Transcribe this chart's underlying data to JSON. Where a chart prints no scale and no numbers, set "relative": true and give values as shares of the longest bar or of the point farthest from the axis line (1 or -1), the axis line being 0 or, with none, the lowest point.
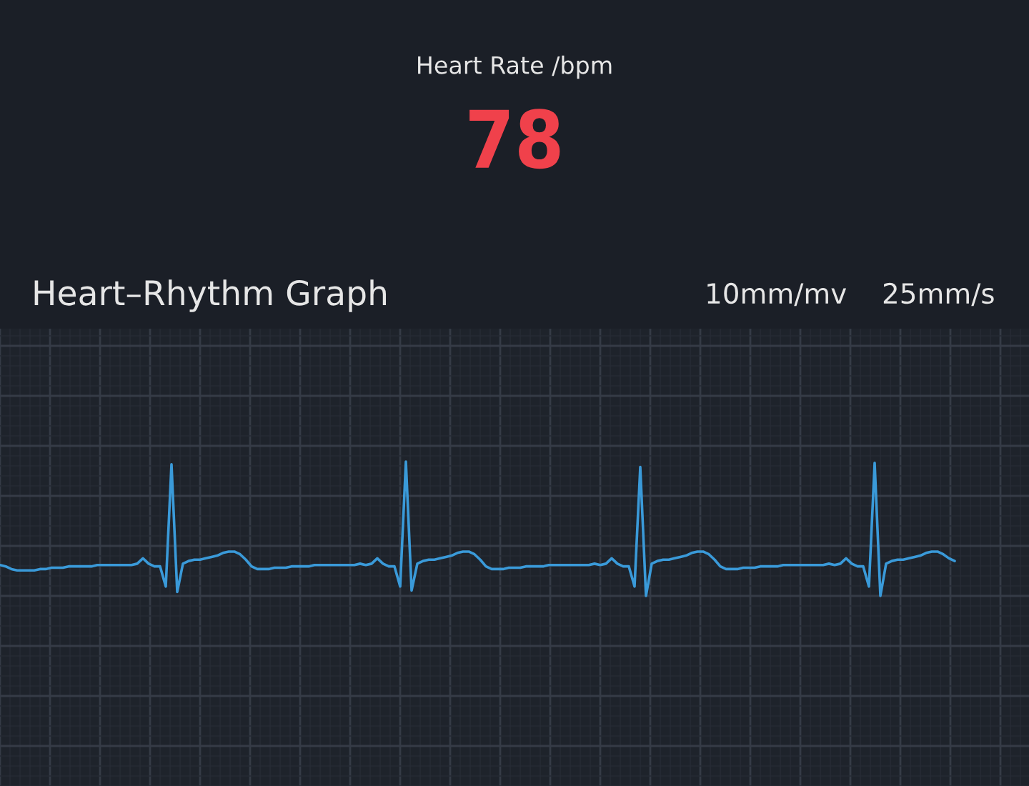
{
  "chart_data": [
    {
      "type": "other",
      "title": "Heart Rate /bpm",
      "annotations": [
        "78"
      ],
      "color": "#f0414b"
    },
    {
      "type": "line",
      "title": "Heart–Rhythm Graph",
      "annotations": [
        "10mm/mv",
        "25mm/s"
      ],
      "relative": true,
      "grid": true,
      "categories": [
        null,
        null,
        null,
        null,
        null,
        null,
        null,
        null,
        null,
        null,
        null,
        null,
        null,
        null,
        null,
        null,
        null,
        null,
        null,
        null,
        null,
        null,
        null,
        null,
        null,
        null,
        null,
        null,
        null,
        null,
        null,
        null,
        null,
        null,
        null,
        null,
        null,
        null,
        null,
        null,
        null,
        null,
        null,
        null,
        null,
        null,
        null,
        null,
        null,
        null,
        null,
        null,
        null,
        null,
        null,
        null,
        null,
        null,
        null,
        null,
        null,
        null,
        null,
        null,
        null,
        null,
        null,
        null,
        null,
        null,
        null,
        null,
        null,
        null,
        null,
        null,
        null,
        null,
        null,
        null,
        null,
        null,
        null,
        null,
        null,
        null,
        null,
        null,
        null,
        null,
        null,
        null,
        null,
        null,
        null,
        null,
        null,
        null,
        null,
        null,
        null,
        null,
        null,
        null,
        null,
        null,
        null,
        null,
        null,
        null,
        null,
        null,
        null,
        null,
        null,
        null,
        null,
        null,
        null,
        null,
        null,
        null,
        null,
        null,
        null,
        null,
        null,
        null,
        null,
        null,
        null,
        null,
        null,
        null,
        null,
        null,
        null,
        null,
        null,
        null,
        null,
        null,
        null,
        null,
        null,
        null,
        null,
        null,
        null,
        null,
        null,
        null,
        null,
        null,
        null,
        null,
        null,
        null,
        null,
        null,
        null,
        null,
        null,
        null,
        null,
        null,
        null,
        null
      ],
      "series": [
        {
          "color": "#3a9ad9",
          "values": [
            0.23,
            0.22,
            0.2,
            0.19,
            0.19,
            0.19,
            0.19,
            0.2,
            0.2,
            0.21,
            0.21,
            0.21,
            0.22,
            0.22,
            0.22,
            0.22,
            0.22,
            0.23,
            0.23,
            0.23,
            0.23,
            0.23,
            0.23,
            0.23,
            0.24,
            0.28,
            0.24,
            0.22,
            0.22,
            0.07,
            0.98,
            0.03,
            0.24,
            0.26,
            0.27,
            0.27,
            0.28,
            0.29,
            0.3,
            0.32,
            0.33,
            0.33,
            0.31,
            0.27,
            0.22,
            0.2,
            0.2,
            0.2,
            0.21,
            0.21,
            0.21,
            0.22,
            0.22,
            0.22,
            0.22,
            0.23,
            0.23,
            0.23,
            0.23,
            0.23,
            0.23,
            0.23,
            0.23,
            0.24,
            0.23,
            0.24,
            0.28,
            0.24,
            0.22,
            0.22,
            0.07,
            1,
            0.04,
            0.24,
            0.26,
            0.27,
            0.27,
            0.28,
            0.29,
            0.3,
            0.32,
            0.33,
            0.33,
            0.31,
            0.27,
            0.22,
            0.2,
            0.2,
            0.2,
            0.21,
            0.21,
            0.21,
            0.22,
            0.22,
            0.22,
            0.22,
            0.23,
            0.23,
            0.23,
            0.23,
            0.23,
            0.23,
            0.23,
            0.23,
            0.24,
            0.23,
            0.24,
            0.28,
            0.24,
            0.22,
            0.22,
            0.07,
            0.96,
            0,
            0.24,
            0.26,
            0.27,
            0.27,
            0.28,
            0.29,
            0.3,
            0.32,
            0.33,
            0.33,
            0.31,
            0.27,
            0.22,
            0.2,
            0.2,
            0.2,
            0.21,
            0.21,
            0.21,
            0.22,
            0.22,
            0.22,
            0.22,
            0.23,
            0.23,
            0.23,
            0.23,
            0.23,
            0.23,
            0.23,
            0.23,
            0.24,
            0.23,
            0.24,
            0.28,
            0.24,
            0.22,
            0.22,
            0.07,
            0.99,
            0,
            0.24,
            0.26,
            0.27,
            0.27,
            0.28,
            0.29,
            0.3,
            0.32,
            0.33,
            0.33,
            0.31,
            0.28,
            0.26
          ]
        }
      ]
    }
  ]
}
